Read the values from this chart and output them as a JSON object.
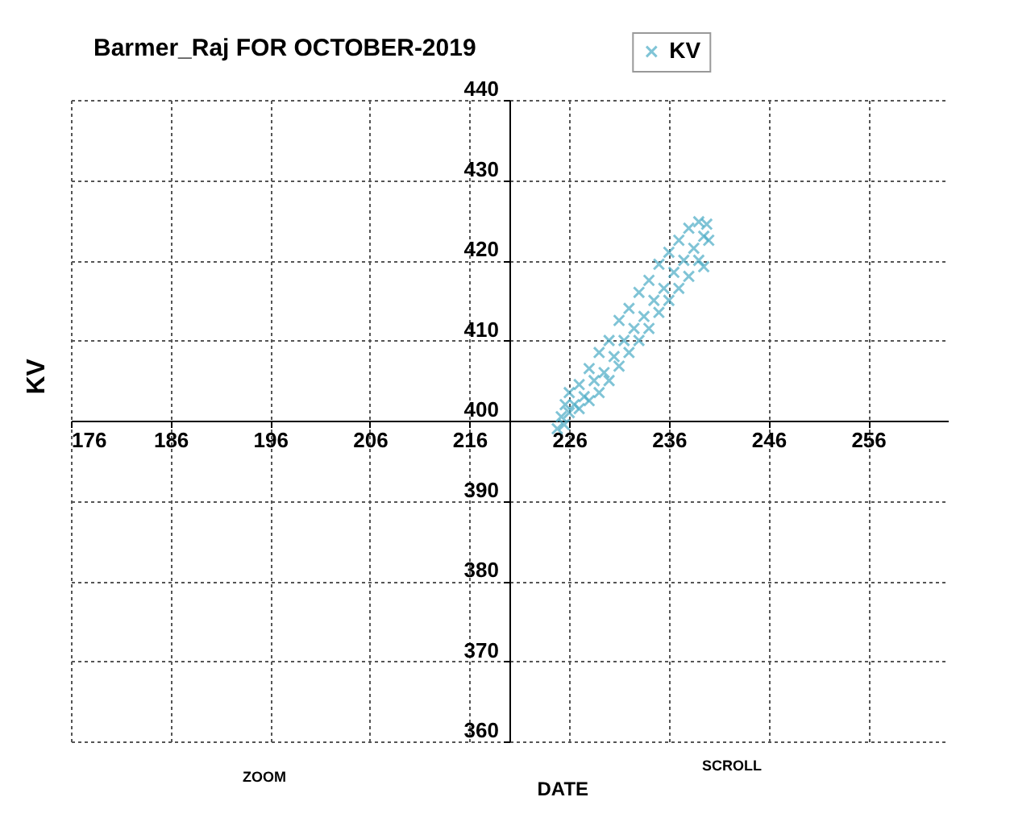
{
  "chart_data": {
    "type": "scatter",
    "title": "Barmer_Raj FOR OCTOBER-2019",
    "xlabel": "DATE",
    "ylabel": "KV",
    "annotations": [
      "ZOOM",
      "SCROLL"
    ],
    "xlim": [
      176,
      264
    ],
    "xticks": [
      176,
      186,
      196,
      206,
      216,
      226,
      236,
      246,
      256
    ],
    "ylim": [
      360,
      440
    ],
    "yticks": [
      360,
      370,
      380,
      390,
      400,
      410,
      420,
      430,
      440
    ],
    "grid": true,
    "legend": "top",
    "marker": "cross",
    "series": [
      {
        "name": "KV",
        "color": "#4bacc6",
        "x": [
          224.8,
          225.2,
          225.5,
          225.6,
          226,
          226,
          226.5,
          227,
          227,
          227.5,
          228,
          228,
          228.5,
          229,
          229,
          229.5,
          230,
          230,
          230.5,
          231,
          231,
          231.5,
          232,
          232,
          232.5,
          233,
          233,
          233.5,
          234,
          234,
          234.5,
          235,
          235,
          235.5,
          236,
          236,
          236.5,
          237,
          237,
          237.5,
          238,
          238,
          238.5,
          239,
          239,
          239.5,
          239.8,
          240,
          239.5
        ],
        "values": [
          399,
          400.5,
          399.5,
          402,
          401,
          403.5,
          402,
          401.5,
          404.5,
          403,
          402.5,
          406.5,
          405,
          403.5,
          408.5,
          406,
          405,
          410,
          408,
          406.8,
          412.5,
          410,
          408.5,
          414,
          411.5,
          410,
          416,
          413,
          411.5,
          417.5,
          415,
          413.5,
          419.5,
          416.5,
          415,
          421,
          418.5,
          416.5,
          422.5,
          420,
          418,
          424,
          421.5,
          420,
          424.8,
          423,
          424.5,
          422.5,
          419.2
        ]
      }
    ]
  }
}
